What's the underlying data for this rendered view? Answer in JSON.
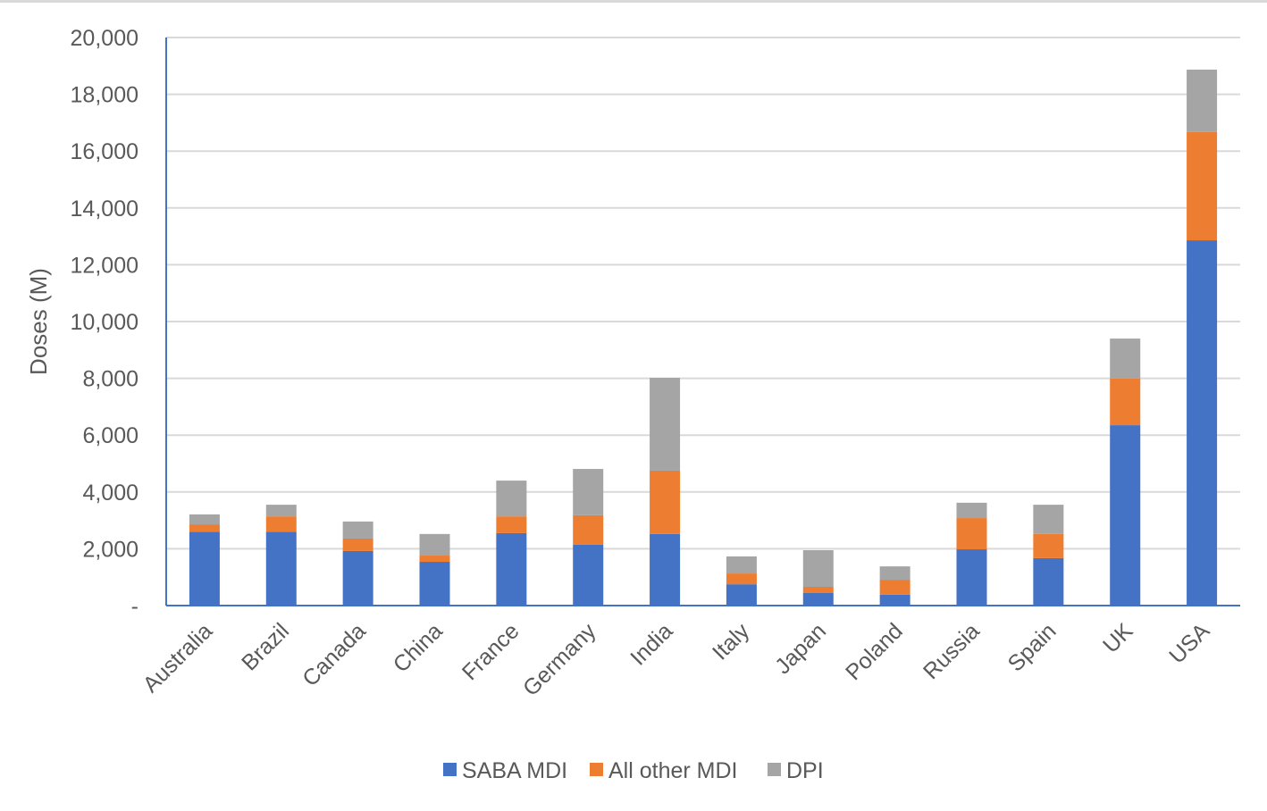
{
  "chart_data": {
    "type": "bar",
    "stacked": true,
    "title": "",
    "xlabel": "",
    "ylabel": "Doses (M)",
    "ylim": [
      0,
      20000
    ],
    "yticks": [
      0,
      2000,
      4000,
      6000,
      8000,
      10000,
      12000,
      14000,
      16000,
      18000,
      20000
    ],
    "ytick_labels": [
      "-",
      "2,000",
      "4,000",
      "6,000",
      "8,000",
      "10,000",
      "12,000",
      "14,000",
      "16,000",
      "18,000",
      "20,000"
    ],
    "grid": true,
    "legend_position": "bottom",
    "categories": [
      "Australia",
      "Brazil",
      "Canada",
      "China",
      "France",
      "Germany",
      "India",
      "Italy",
      "Japan",
      "Poland",
      "Russia",
      "Spain",
      "UK",
      "USA"
    ],
    "series": [
      {
        "name": "SABA MDI",
        "color": "#4472c4",
        "values": [
          2600,
          2600,
          1920,
          1540,
          2550,
          2140,
          2520,
          750,
          440,
          380,
          1980,
          1670,
          6350,
          12860
        ]
      },
      {
        "name": "All other MDI",
        "color": "#ed7d31",
        "values": [
          260,
          540,
          440,
          220,
          590,
          1040,
          2230,
          380,
          220,
          530,
          1100,
          850,
          1640,
          3810
        ]
      },
      {
        "name": "DPI",
        "color": "#a5a5a5",
        "values": [
          350,
          410,
          600,
          760,
          1260,
          1630,
          3270,
          600,
          1290,
          470,
          540,
          1030,
          1410,
          2200
        ]
      }
    ]
  }
}
